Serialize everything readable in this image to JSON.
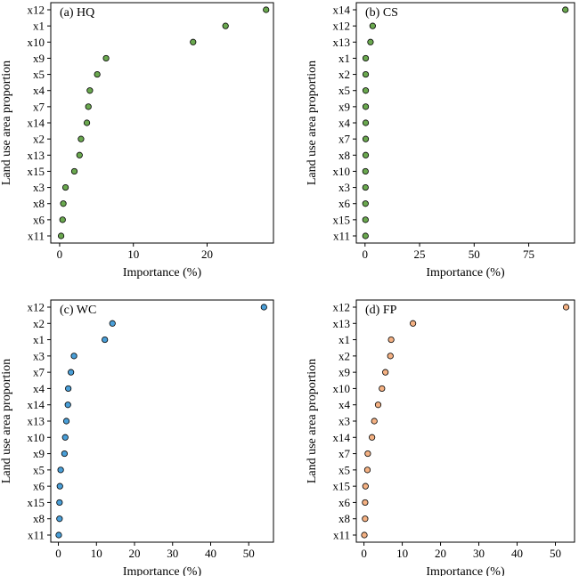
{
  "chart_data": [
    {
      "type": "scatter",
      "title": "(a) HQ",
      "xlabel": "Importance (%)",
      "ylabel": "Land use area proportion",
      "color": "#6aa84f",
      "categories": [
        "x12",
        "x1",
        "x10",
        "x9",
        "x5",
        "x4",
        "x7",
        "x14",
        "x2",
        "x13",
        "x15",
        "x3",
        "x8",
        "x6",
        "x11"
      ],
      "values": [
        28.0,
        22.5,
        18.1,
        6.3,
        5.1,
        4.1,
        3.9,
        3.7,
        2.9,
        2.7,
        2.0,
        0.8,
        0.5,
        0.4,
        0.2
      ],
      "xlim": [
        -1.2,
        29.0
      ],
      "xticks": [
        0,
        10,
        20
      ],
      "xtick_labels": [
        "0",
        "10",
        "20"
      ]
    },
    {
      "type": "scatter",
      "title": "(b) CS",
      "xlabel": "Importance (%)",
      "ylabel": "Land use area proportion",
      "color": "#6aa84f",
      "categories": [
        "x14",
        "x12",
        "x13",
        "x1",
        "x2",
        "x5",
        "x9",
        "x4",
        "x7",
        "x8",
        "x10",
        "x3",
        "x6",
        "x15",
        "x11"
      ],
      "values": [
        91.8,
        3.5,
        2.5,
        0.3,
        0.3,
        0.3,
        0.3,
        0.3,
        0.3,
        0.3,
        0.2,
        0.2,
        0.2,
        0.2,
        0.2
      ],
      "xlim": [
        -4.0,
        96.0
      ],
      "xticks": [
        0,
        25,
        50,
        75
      ],
      "xtick_labels": [
        "0",
        "25",
        "50",
        "75"
      ]
    },
    {
      "type": "scatter",
      "title": "(c) WC",
      "xlabel": "Importance (%)",
      "ylabel": "Land use area proportion",
      "color": "#4a9fd8",
      "categories": [
        "x12",
        "x2",
        "x1",
        "x3",
        "x7",
        "x4",
        "x14",
        "x13",
        "x10",
        "x9",
        "x5",
        "x6",
        "x15",
        "x8",
        "x11"
      ],
      "values": [
        54.0,
        14.2,
        12.2,
        4.1,
        3.3,
        2.6,
        2.5,
        2.1,
        1.8,
        1.6,
        0.6,
        0.4,
        0.3,
        0.3,
        0.1
      ],
      "xlim": [
        -2.0,
        56.5
      ],
      "xticks": [
        0,
        10,
        20,
        30,
        40,
        50
      ],
      "xtick_labels": [
        "0",
        "10",
        "20",
        "30",
        "40",
        "50"
      ]
    },
    {
      "type": "scatter",
      "title": "(d) FP",
      "xlabel": "Importance (%)",
      "ylabel": "Land use area proportion",
      "color": "#f4b183",
      "categories": [
        "x12",
        "x13",
        "x1",
        "x2",
        "x9",
        "x10",
        "x4",
        "x3",
        "x14",
        "x7",
        "x5",
        "x15",
        "x6",
        "x8",
        "x11"
      ],
      "values": [
        52.8,
        12.8,
        7.1,
        6.9,
        5.6,
        4.7,
        3.7,
        2.7,
        2.1,
        1.0,
        0.9,
        0.4,
        0.3,
        0.3,
        0.1
      ],
      "xlim": [
        -2.0,
        55.0
      ],
      "xticks": [
        0,
        10,
        20,
        30,
        40,
        50
      ],
      "xtick_labels": [
        "0",
        "10",
        "20",
        "30",
        "40",
        "50"
      ]
    }
  ]
}
